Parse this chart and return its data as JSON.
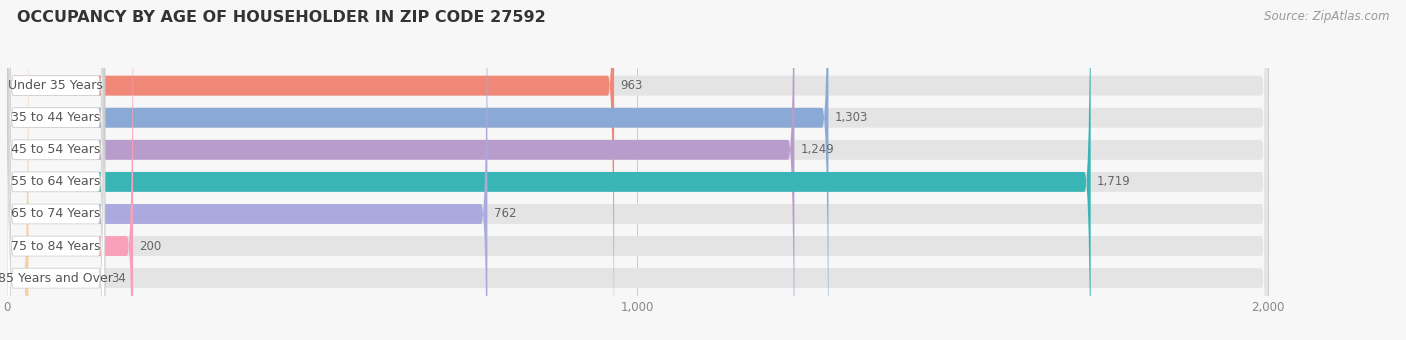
{
  "title": "OCCUPANCY BY AGE OF HOUSEHOLDER IN ZIP CODE 27592",
  "source": "Source: ZipAtlas.com",
  "categories": [
    "Under 35 Years",
    "35 to 44 Years",
    "45 to 54 Years",
    "55 to 64 Years",
    "65 to 74 Years",
    "75 to 84 Years",
    "85 Years and Over"
  ],
  "values": [
    963,
    1303,
    1249,
    1719,
    762,
    200,
    34
  ],
  "bar_colors": [
    "#f08878",
    "#8aaad5",
    "#b89ccb",
    "#3ab5b5",
    "#abaade",
    "#f8a0ba",
    "#f8cfa0"
  ],
  "xlim_max": 2000,
  "xticks": [
    0,
    1000,
    2000
  ],
  "bg_color": "#f7f7f7",
  "bar_bg_color": "#e4e4e4",
  "label_bg_color": "#ffffff",
  "title_fontsize": 11.5,
  "label_fontsize": 9,
  "value_fontsize": 8.5,
  "source_fontsize": 8.5
}
